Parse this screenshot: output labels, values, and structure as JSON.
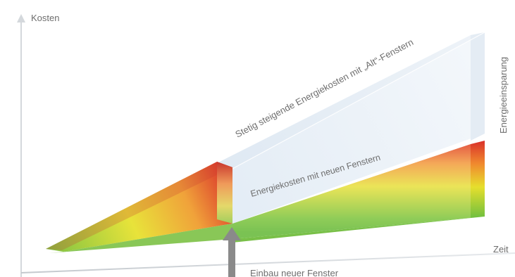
{
  "axes": {
    "y_label": "Kosten",
    "x_label": "Zeit"
  },
  "labels": {
    "old_windows": "Stetig steigende Energiekosten mit „Alt“-Fenstern",
    "new_windows": "Energiekosten mit neuen Fenstern",
    "savings": "Energieeinsparung",
    "installation": "Einbau neuer Fenster"
  },
  "colors": {
    "axis": "#cfd3d7",
    "text": "#6e6e6e",
    "glass_fill": "#eaf1f7",
    "cost_green": "#7dc242",
    "cost_yellow": "#e8e33a",
    "cost_orange": "#f0a23a",
    "cost_red": "#d9302a",
    "arrow": "#8a8a8a"
  }
}
